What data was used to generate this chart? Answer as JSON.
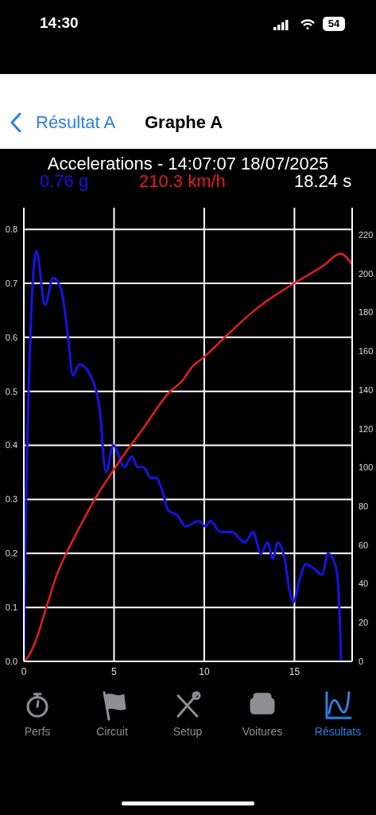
{
  "chart_data": {
    "type": "line",
    "title": "Accelerations - 14:07:07 18/07/2025",
    "annotations": [
      "0.76 g",
      "210.3 km/h",
      "18.24 s",
      "14:30",
      "54",
      "Résultat A",
      "Graphe A",
      "Perfs",
      "Circuit",
      "Setup",
      "Voitures",
      "Résultats"
    ],
    "series": [
      {
        "color": "#1414e6",
        "x": [
          0,
          0.1,
          0.36,
          0.7,
          1.17,
          1.62,
          2.06,
          2.42,
          2.72,
          3.08,
          3.82,
          4.19,
          4.55,
          4.96,
          5.58,
          5.98,
          6.31,
          6.61,
          7.05,
          7.34,
          7.64,
          8.0,
          8.52,
          8.96,
          9.69,
          10.06,
          10.35,
          10.87,
          11.23,
          11.53,
          12.26,
          12.7,
          13.14,
          13.51,
          13.8,
          14.07,
          14.46,
          14.68,
          14.95,
          15.27,
          15.64,
          16.15,
          16.52,
          16.86,
          17.25,
          17.4,
          17.5,
          17.59
        ],
        "values": [
          0,
          0.25,
          0.6,
          0.76,
          0.66,
          0.71,
          0.69,
          0.61,
          0.53,
          0.55,
          0.52,
          0.47,
          0.35,
          0.4,
          0.36,
          0.38,
          0.36,
          0.36,
          0.34,
          0.34,
          0.32,
          0.28,
          0.27,
          0.25,
          0.26,
          0.25,
          0.26,
          0.24,
          0.24,
          0.24,
          0.22,
          0.24,
          0.2,
          0.22,
          0.19,
          0.22,
          0.19,
          0.14,
          0.11,
          0.15,
          0.18,
          0.17,
          0.16,
          0.2,
          0.18,
          0.15,
          0.09,
          0
        ]
      },
      {
        "color": "#e61e1e",
        "axis": "y2",
        "x": [
          0,
          0.07,
          0.59,
          1.25,
          1.84,
          2.42,
          3.08,
          3.89,
          4.85,
          5.73,
          6.53,
          8.08,
          8.81,
          9.25,
          9.99,
          11.23,
          12.78,
          13.8,
          14.98,
          16.59,
          17.55,
          18.18
        ],
        "values": [
          0,
          0.4,
          9,
          28,
          45,
          57,
          69,
          83,
          97,
          109,
          119,
          139,
          145,
          151,
          157,
          168,
          181,
          188,
          195,
          204,
          210.3,
          205
        ]
      }
    ],
    "xlim": [
      0,
      18.2
    ],
    "xticks": [
      0,
      5,
      10,
      15
    ],
    "ylim": [
      0,
      0.84
    ],
    "yticks": [
      {
        "value": 0,
        "label": "0.0"
      },
      0.1,
      0.2,
      0.3,
      0.4,
      0.5,
      0.6,
      0.7,
      0.8
    ],
    "y2lim": [
      0,
      234
    ],
    "y2ticks": [
      0,
      20,
      40,
      60,
      80,
      100,
      120,
      140,
      160,
      180,
      200,
      220
    ],
    "grid": true,
    "line_style": "solid",
    "marker": "none"
  }
}
